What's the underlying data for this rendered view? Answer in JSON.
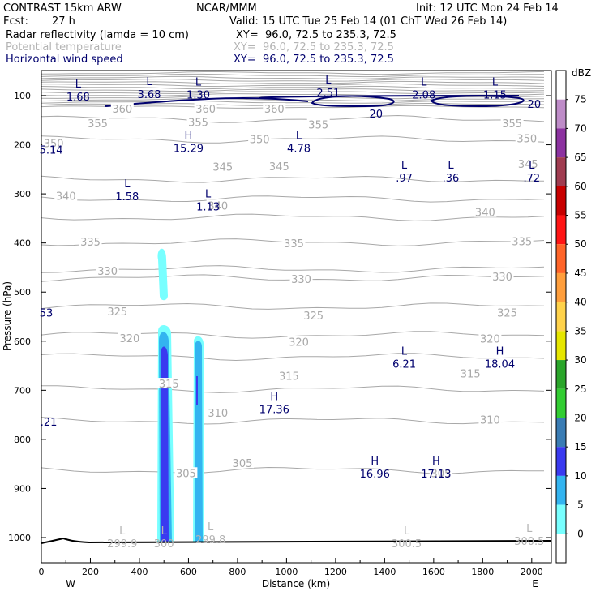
{
  "header": {
    "model": "CONTRAST 15km ARW",
    "org": "NCAR/MMM",
    "init": "Init: 12 UTC Mon 24 Feb 14",
    "fcst_label": "Fcst:",
    "fcst_value": "27 h",
    "valid": "Valid: 15 UTC Tue 25 Feb 14 (01 ChT Wed 26 Feb 14)",
    "fields": [
      {
        "name": "Radar reflectivity (lamda = 10 cm)",
        "xy": "XY=  96.0, 72.5 to 235.3, 72.5",
        "color": "#000000"
      },
      {
        "name": "Potential temperature",
        "xy": "XY=  96.0, 72.5 to 235.3, 72.5",
        "color": "#b4b4b4"
      },
      {
        "name": "Horizontal wind speed",
        "xy": "XY=  96.0, 72.5 to 235.3, 72.5",
        "color": "#00006e"
      }
    ]
  },
  "chart_data": {
    "type": "cross-section",
    "xlabel": "Distance (km)",
    "ylabel": "Pressure (hPa)",
    "xlim": [
      0,
      2080
    ],
    "ylim": [
      1050,
      60
    ],
    "x_ticks": [
      0,
      200,
      400,
      600,
      800,
      1000,
      1200,
      1400,
      1600,
      1800,
      2000
    ],
    "y_ticks": [
      100,
      200,
      300,
      400,
      500,
      600,
      700,
      800,
      900,
      1000
    ],
    "x_end_labels": {
      "left": "W",
      "right": "E"
    },
    "colorbar": {
      "unit": "dBZ",
      "levels": [
        0,
        5,
        10,
        15,
        20,
        25,
        30,
        35,
        40,
        45,
        50,
        55,
        60,
        65,
        70,
        75
      ],
      "colors": [
        "#ffffff",
        "#78ffff",
        "#33b4f0",
        "#3a3af0",
        "#3a7cb4",
        "#32cd32",
        "#2aa52a",
        "#e6e600",
        "#ffd24a",
        "#ff9e3c",
        "#ff6428",
        "#ff1414",
        "#c80000",
        "#a03c50",
        "#8c32a0",
        "#be8cc8",
        "#ffffff"
      ]
    },
    "theta_labels": [
      {
        "x": 330,
        "p": 128,
        "v": "360"
      },
      {
        "x": 950,
        "p": 128,
        "v": "360"
      },
      {
        "x": 670,
        "p": 128,
        "v": "360"
      },
      {
        "x": 230,
        "p": 158,
        "v": "355"
      },
      {
        "x": 640,
        "p": 155,
        "v": "355"
      },
      {
        "x": 1130,
        "p": 160,
        "v": "355"
      },
      {
        "x": 1920,
        "p": 158,
        "v": "355"
      },
      {
        "x": 50,
        "p": 198,
        "v": "350"
      },
      {
        "x": 890,
        "p": 190,
        "v": "350"
      },
      {
        "x": 1980,
        "p": 188,
        "v": "350"
      },
      {
        "x": 740,
        "p": 246,
        "v": "345"
      },
      {
        "x": 970,
        "p": 245,
        "v": "345"
      },
      {
        "x": 1985,
        "p": 240,
        "v": "345"
      },
      {
        "x": 100,
        "p": 306,
        "v": "340"
      },
      {
        "x": 720,
        "p": 325,
        "v": "340"
      },
      {
        "x": 1810,
        "p": 339,
        "v": "340"
      },
      {
        "x": 200,
        "p": 399,
        "v": "335"
      },
      {
        "x": 1030,
        "p": 402,
        "v": "335"
      },
      {
        "x": 1960,
        "p": 398,
        "v": "335"
      },
      {
        "x": 270,
        "p": 458,
        "v": "330"
      },
      {
        "x": 1060,
        "p": 475,
        "v": "330"
      },
      {
        "x": 1880,
        "p": 470,
        "v": "330"
      },
      {
        "x": 310,
        "p": 541,
        "v": "325"
      },
      {
        "x": 1110,
        "p": 549,
        "v": "325"
      },
      {
        "x": 1900,
        "p": 543,
        "v": "325"
      },
      {
        "x": 360,
        "p": 595,
        "v": "320"
      },
      {
        "x": 1050,
        "p": 603,
        "v": "320"
      },
      {
        "x": 1830,
        "p": 596,
        "v": "320"
      },
      {
        "x": 1010,
        "p": 672,
        "v": "315"
      },
      {
        "x": 1750,
        "p": 667,
        "v": "315"
      },
      {
        "x": 520,
        "p": 688,
        "v": "315"
      },
      {
        "x": 720,
        "p": 747,
        "v": "310"
      },
      {
        "x": 1830,
        "p": 761,
        "v": "310"
      },
      {
        "x": 590,
        "p": 870,
        "v": "305"
      },
      {
        "x": 820,
        "p": 850,
        "v": "305"
      },
      {
        "x": 1630,
        "p": 870,
        "v": "305"
      }
    ],
    "extremes": [
      {
        "sym": "L",
        "x": 150,
        "p": 90,
        "v": "1.68",
        "color": "#00006e"
      },
      {
        "sym": "L",
        "x": 440,
        "p": 85,
        "v": "3.68",
        "color": "#00006e"
      },
      {
        "sym": "L",
        "x": 640,
        "p": 86,
        "v": "1.30",
        "color": "#00006e"
      },
      {
        "sym": "L",
        "x": 1170,
        "p": 82,
        "v": "2.51",
        "color": "#00006e"
      },
      {
        "sym": "L",
        "x": 1560,
        "p": 86,
        "v": "2.08",
        "color": "#00006e"
      },
      {
        "sym": "L",
        "x": 1850,
        "p": 86,
        "v": "1.15",
        "color": "#00006e"
      },
      {
        "sym": "",
        "x": 40,
        "p": 198,
        "v": "5.14",
        "color": "#00006e"
      },
      {
        "sym": "H",
        "x": 600,
        "p": 195,
        "v": "15.29",
        "color": "#00006e"
      },
      {
        "sym": "L",
        "x": 1050,
        "p": 195,
        "v": "4.78",
        "color": "#00006e"
      },
      {
        "sym": "L",
        "x": 350,
        "p": 293,
        "v": "1.58",
        "color": "#00006e"
      },
      {
        "sym": "L",
        "x": 680,
        "p": 314,
        "v": "1.13",
        "color": "#00006e"
      },
      {
        "sym": "L",
        "x": 1480,
        "p": 255,
        "v": ".97",
        "color": "#00006e"
      },
      {
        "sym": "L",
        "x": 1670,
        "p": 255,
        "v": ".36",
        "color": "#00006e"
      },
      {
        "sym": "L",
        "x": 2000,
        "p": 255,
        "v": ".72",
        "color": "#00006e"
      },
      {
        "sym": "",
        "x": 20,
        "p": 530,
        "v": "53",
        "color": "#00006e"
      },
      {
        "sym": "L",
        "x": 1480,
        "p": 634,
        "v": "6.21",
        "color": "#00006e"
      },
      {
        "sym": "H",
        "x": 1870,
        "p": 634,
        "v": "18.04",
        "color": "#00006e"
      },
      {
        "sym": "H",
        "x": 950,
        "p": 727,
        "v": "17.36",
        "color": "#00006e"
      },
      {
        "sym": "",
        "x": 30,
        "p": 752,
        "v": ".21",
        "color": "#00006e"
      },
      {
        "sym": "H",
        "x": 1360,
        "p": 858,
        "v": "16.96",
        "color": "#00006e"
      },
      {
        "sym": "H",
        "x": 1610,
        "p": 858,
        "v": "17.13",
        "color": "#00006e"
      },
      {
        "sym": "L",
        "x": 330,
        "p": 1000,
        "v": "299.9",
        "color": "#b4b4b4"
      },
      {
        "sym": "L",
        "x": 500,
        "p": 1000,
        "v": "300",
        "color": "#b4b4b4"
      },
      {
        "sym": "L",
        "x": 690,
        "p": 992,
        "v": "299.8",
        "color": "#b4b4b4"
      },
      {
        "sym": "L",
        "x": 1490,
        "p": 1000,
        "v": "300.5",
        "color": "#b4b4b4"
      },
      {
        "sym": "L",
        "x": 1990,
        "p": 995,
        "v": "300.5",
        "color": "#b4b4b4"
      }
    ],
    "wind_contour_labels": [
      {
        "x": 1365,
        "p": 138,
        "v": "20"
      },
      {
        "x": 2010,
        "p": 118,
        "v": "20"
      }
    ]
  }
}
